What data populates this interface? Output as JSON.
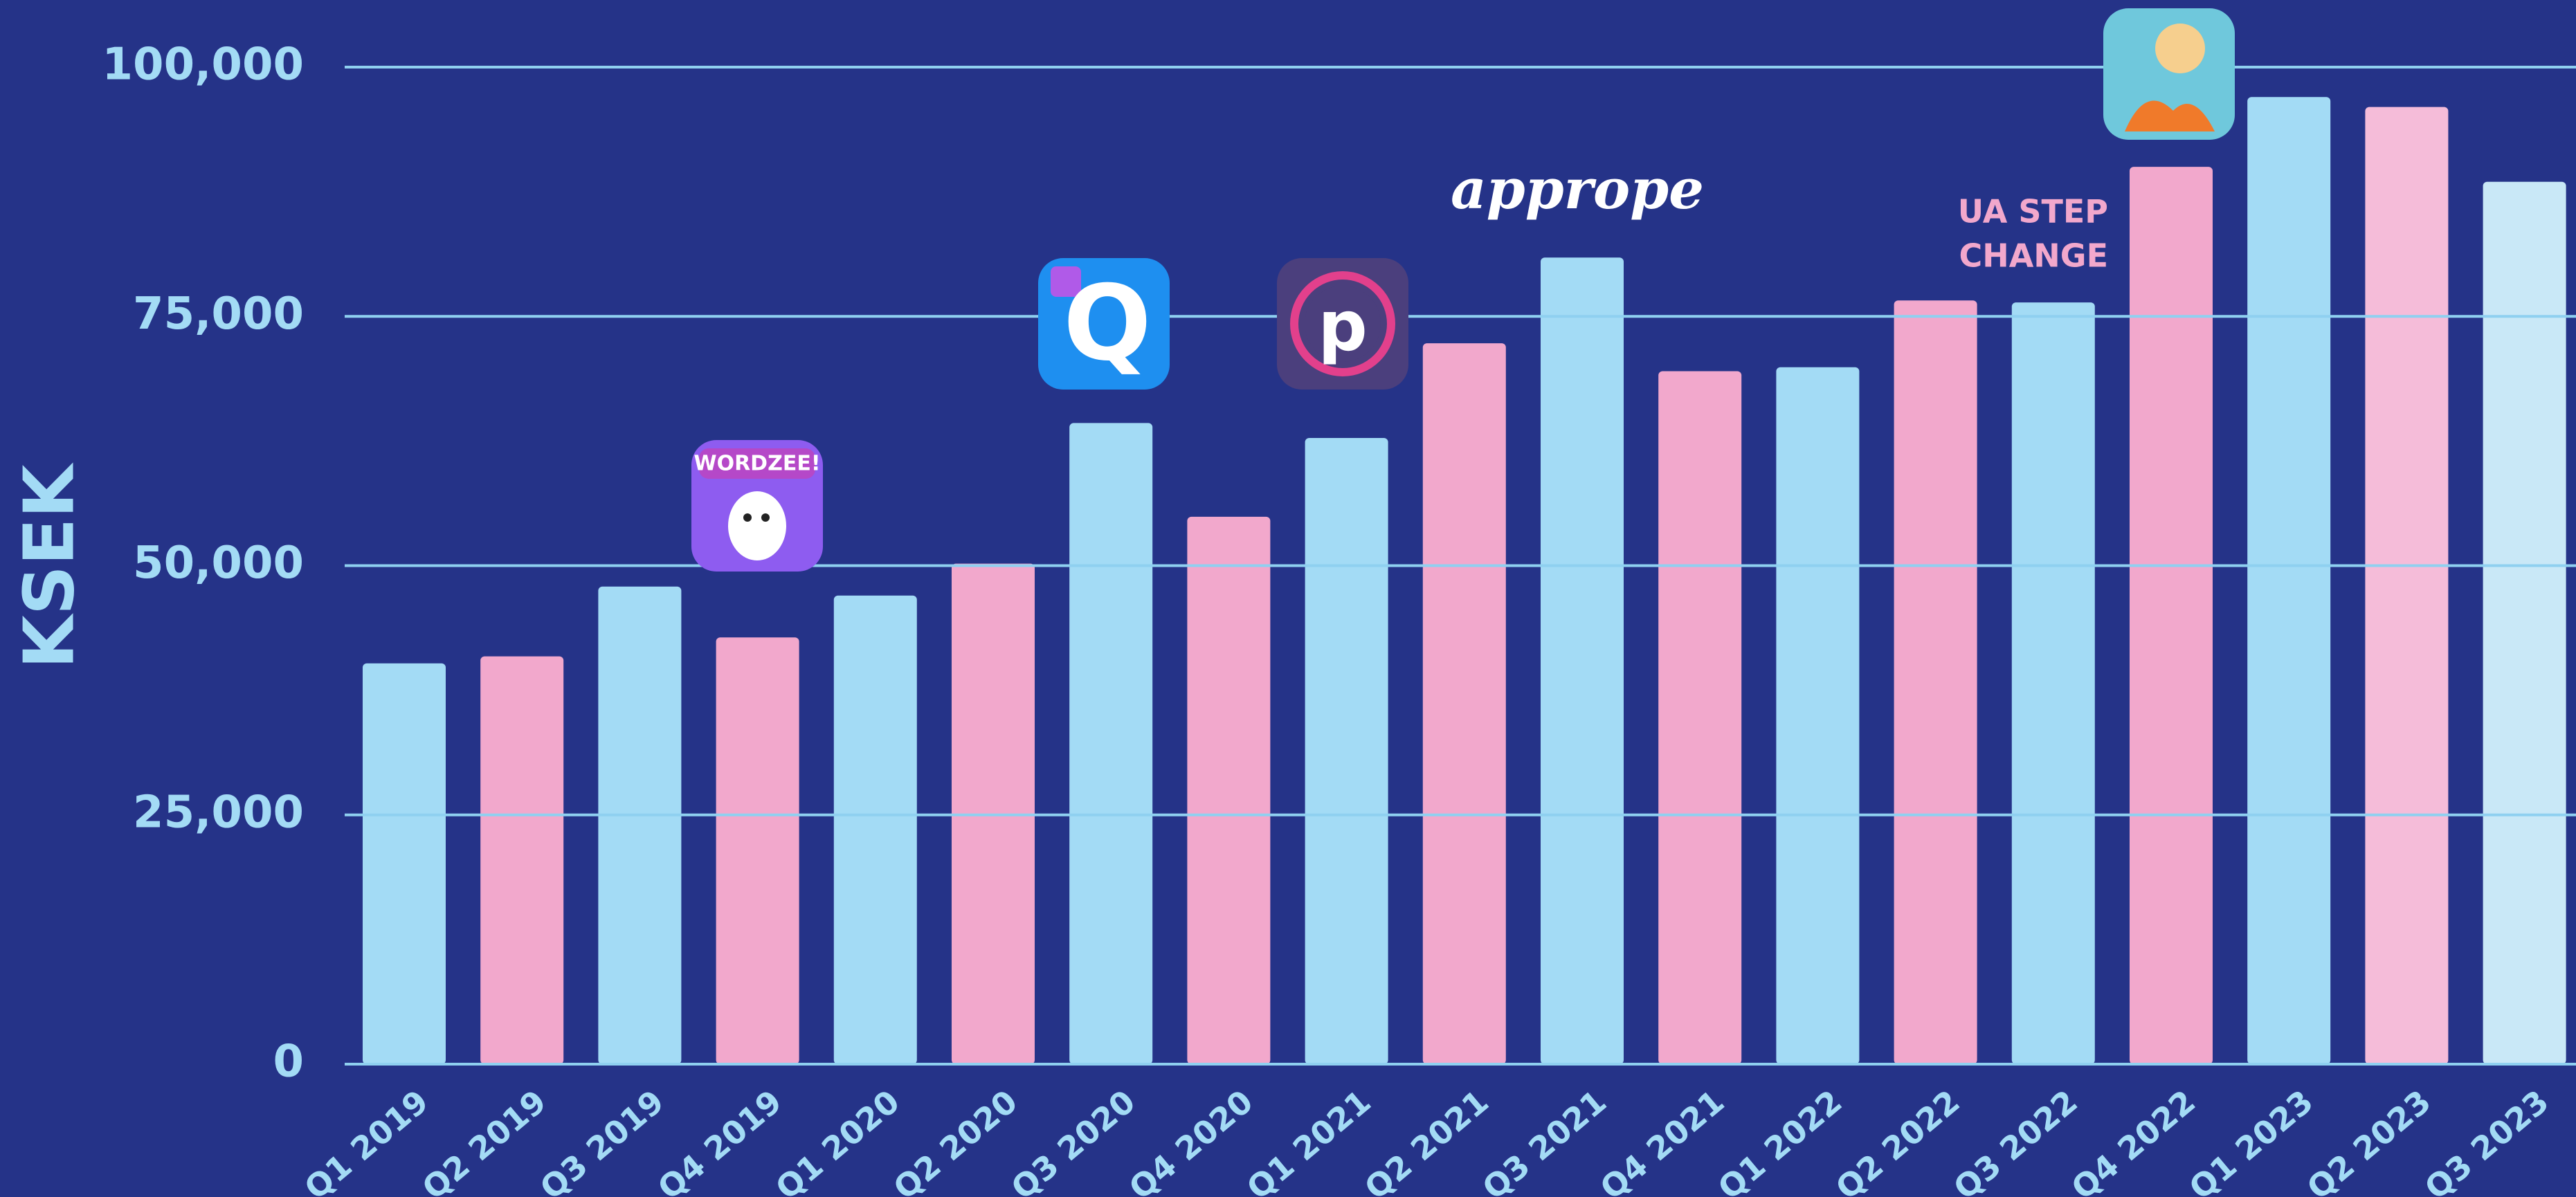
{
  "chart_data": {
    "type": "bar",
    "y_label": "KSEK",
    "categories": [
      "Q1 2019",
      "Q2 2019",
      "Q3 2019",
      "Q4 2019",
      "Q1 2020",
      "Q2 2020",
      "Q3 2020",
      "Q4 2020",
      "Q1 2021",
      "Q2 2021",
      "Q3 2021",
      "Q4 2021",
      "Q1 2022",
      "Q2 2022",
      "Q3 2022",
      "Q4 2022",
      "Q1 2023",
      "Q2 2023",
      "Q3 2023"
    ],
    "values": [
      40200,
      40900,
      47900,
      42800,
      47000,
      50200,
      64300,
      54900,
      62800,
      72300,
      80900,
      69500,
      69900,
      76600,
      76400,
      90000,
      97000,
      96000,
      88500
    ],
    "colors": [
      "#a3dbf5",
      "#f2a8cc",
      "#a3dbf5",
      "#f2a8cc",
      "#a3dbf5",
      "#f2a8cc",
      "#a3dbf5",
      "#f2a8cc",
      "#a3dbf5",
      "#f2a8cc",
      "#a3dbf5",
      "#f2a8cc",
      "#a3dbf5",
      "#f2a8cc",
      "#a3dbf5",
      "#f2a8cc",
      "#a3dbf5",
      "#f5bcd9",
      "#c9e8f7"
    ],
    "ylim": [
      0,
      100000
    ],
    "yticks": [
      0,
      {
        "value": 25000,
        "label": "25,000"
      },
      {
        "value": 50000,
        "label": "50,000"
      },
      {
        "value": 75000,
        "label": "75,000"
      },
      {
        "value": 100000,
        "label": "100,000"
      }
    ],
    "grid": true,
    "annotations": {
      "wordzee": "WORDZEE!",
      "quiz_logo": "Q",
      "p_logo": "p",
      "apprope": "apprope",
      "ua_note": [
        "UA STEP",
        "CHANGE"
      ]
    }
  }
}
